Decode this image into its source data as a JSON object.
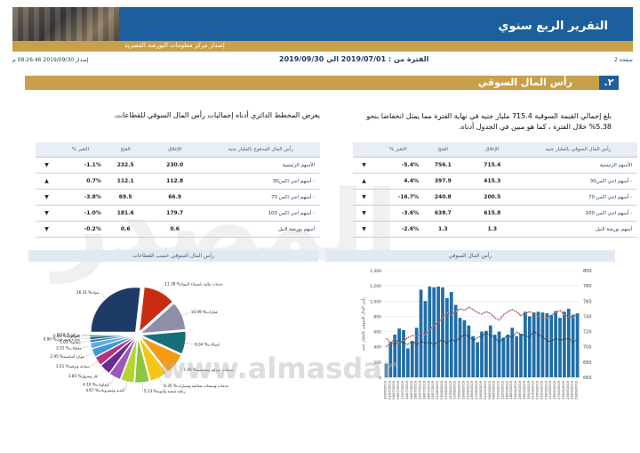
{
  "header": {
    "title": "التقرير الربع سنوي",
    "subtitle": "إصدار مركز معلومات البورصة المصرية"
  },
  "meta": {
    "page": "صفحة 2",
    "period": "الفترة من : 2019/07/01 الي 2019/09/30",
    "issue": "إصدار 2019/09/30 08:26:46 م"
  },
  "section": {
    "number": ".٢",
    "title": "رأس المال السوقي"
  },
  "paragraphs": {
    "right": "بلغ إجمالي القيمة السوقية 715.4 مليار جنيه في نهاية الفترة مما يمثل انخفاضا بنحو 5.38% خلال الفترة ، كما هو مبين في الجدول أدناه.",
    "left": "يعرض المخطط الدائري أدناه إجماليات رأس المال السوقي للقطاعات."
  },
  "table_right": {
    "headers": [
      "رأس المال السوقي بالمليار جنيه",
      "الإغلاق",
      "الفتح",
      "% التغير"
    ],
    "rows": [
      {
        "name": "الأسهم الرئيسية",
        "close": "715.4",
        "open": "756.1",
        "chg": "-5.4%",
        "dir": "down"
      },
      {
        "name": "- أسهم اجي اكس30",
        "close": "415.3",
        "open": "397.9",
        "chg": "4.4%",
        "dir": "up"
      },
      {
        "name": "- أسهم اجي اكس 70",
        "close": "200.5",
        "open": "240.8",
        "chg": "-16.7%",
        "dir": "down"
      },
      {
        "name": "- أسهم اجي اكس 100",
        "close": "615.8",
        "open": "638.7",
        "chg": "-3.6%",
        "dir": "down"
      },
      {
        "name": "أسهم بورصة النيل",
        "close": "1.3",
        "open": "1.3",
        "chg": "-2.6%",
        "dir": "down"
      }
    ]
  },
  "table_left": {
    "headers": [
      "رأس المال المدفوع بالمليار جنيه",
      "الإغلاق",
      "الفتح",
      "% التغير"
    ],
    "rows": [
      {
        "name": "الأسهم الرئيسية",
        "close": "230.0",
        "open": "232.5",
        "chg": "-1.1%",
        "dir": "down"
      },
      {
        "name": "- أسهم اجي اكس30",
        "close": "112.8",
        "open": "112.1",
        "chg": "0.7%",
        "dir": "up"
      },
      {
        "name": "- أسهم اجي اكس 70",
        "close": "66.9",
        "open": "69.5",
        "chg": "-3.8%",
        "dir": "down"
      },
      {
        "name": "- أسهم اجي اكس 100",
        "close": "179.7",
        "open": "181.6",
        "chg": "-1.0%",
        "dir": "down"
      },
      {
        "name": "أسهم بورصة النيل",
        "close": "0.6",
        "open": "0.6",
        "chg": "-0.2%",
        "dir": "down"
      }
    ]
  },
  "watermark": {
    "text": "المصدر",
    "url": "www.almasdar"
  },
  "chart_data": [
    {
      "type": "bar",
      "title": "رأس المال السوقي",
      "ylabel_left": "رأس المال السوقي بالمليار جنيه",
      "ylabel_right": "",
      "ylim_left": [
        0,
        1400
      ],
      "yticks_left": [
        "1,400",
        "1,200",
        "1,000",
        "800",
        "600",
        "400",
        "200",
        "0"
      ],
      "ylim_right": [
        660,
        800
      ],
      "yticks_right": [
        "800",
        "780",
        "760",
        "740",
        "720",
        "700",
        "680",
        "660"
      ],
      "categories": [
        "30/06/2019",
        "02/07/2019",
        "04/07/2019",
        "08/07/2019",
        "10/07/2019",
        "14/07/2019",
        "16/07/2019",
        "18/07/2019",
        "22/07/2019",
        "24/07/2019",
        "28/07/2019",
        "30/07/2019",
        "01/08/2019",
        "05/08/2019",
        "07/08/2019",
        "11/08/2019",
        "13/08/2019",
        "15/08/2019",
        "19/08/2019",
        "21/08/2019",
        "25/08/2019",
        "27/08/2019",
        "29/08/2019",
        "02/09/2019",
        "04/09/2019",
        "08/09/2019",
        "10/09/2019",
        "12/09/2019",
        "16/09/2019",
        "18/09/2019",
        "22/09/2019",
        "24/09/2019",
        "26/09/2019",
        "30/09/2019",
        "01/09/2019",
        "03/09/2019",
        "05/09/2019",
        "09/09/2019",
        "11/09/2019",
        "15/09/2019",
        "17/09/2019",
        "19/09/2019",
        "23/09/2019",
        "25/09/2019",
        "29/09/2019"
      ],
      "series": [
        {
          "name": "",
          "kind": "bar",
          "values": [
            180,
            460,
            560,
            640,
            620,
            380,
            470,
            650,
            1150,
            1000,
            1190,
            1180,
            1190,
            1180,
            1040,
            1120,
            950,
            780,
            750,
            680,
            540,
            460,
            600,
            610,
            680,
            560,
            600,
            520,
            560,
            650,
            540,
            570,
            860,
            800,
            850,
            860,
            850,
            840,
            820,
            870,
            780,
            860,
            900,
            820,
            840
          ]
        },
        {
          "name": "",
          "kind": "line",
          "values": [
            700,
            705,
            710,
            705,
            708,
            712,
            715,
            714,
            718,
            716,
            722,
            728,
            732,
            738,
            745,
            742,
            746,
            750,
            748,
            752,
            749,
            745,
            743,
            746,
            744,
            738,
            735,
            742,
            746,
            749,
            746,
            741,
            744,
            746,
            744,
            740,
            736,
            738,
            741,
            745,
            748,
            742,
            740,
            738,
            744
          ]
        },
        {
          "name": "",
          "kind": "line",
          "values": [
            711,
            706,
            703,
            708,
            705,
            703,
            708,
            703,
            707,
            705,
            706,
            703,
            707,
            709,
            705,
            710,
            707,
            712,
            716,
            714,
            708,
            712,
            714,
            718,
            715,
            712,
            706,
            711,
            715,
            712,
            719,
            717,
            714,
            713,
            720,
            716,
            713,
            708,
            707,
            711,
            709,
            710,
            711,
            706,
            710
          ]
        }
      ]
    },
    {
      "type": "pie",
      "title": "رأس المال السوقي حسب القطاعات",
      "slices": [
        {
          "label": "بنوك",
          "value": 26.31,
          "color": "#1e3a66"
        },
        {
          "label": "خدمات مالية باستثناء البنوك",
          "value": 11.38,
          "color": "#c72c12"
        },
        {
          "label": "عقارات",
          "value": 10.09,
          "color": "#8e8ea8"
        },
        {
          "label": "اتصالات",
          "value": 8.04,
          "color": "#186f7a"
        },
        {
          "label": "منتجات منزلية وشخصية",
          "value": 7.49,
          "color": "#f39c12"
        },
        {
          "label": "خدمات ومنتجات صناعية وسيارات",
          "value": 6.35,
          "color": "#f5c518"
        },
        {
          "label": "رعاية صحية وأدوية",
          "value": 5.13,
          "color": "#8cc63f"
        },
        {
          "label": "أغذية ومشروبات",
          "value": 4.67,
          "color": "#b5d334"
        },
        {
          "label": "كيماويات",
          "value": 4.1,
          "color": "#9b59b6"
        },
        {
          "label": "غاز وبترول",
          "value": 3.85,
          "color": "#6a2c91"
        },
        {
          "label": "سياحة وترفيه",
          "value": 3.21,
          "color": "#b83280"
        },
        {
          "label": "موارد أساسية",
          "value": 2.95,
          "color": "#3c9bd6"
        },
        {
          "label": "مقاولات وإنشاءات هندسية",
          "value": 2.01,
          "color": "#5dade2"
        },
        {
          "label": "إعلام",
          "value": 1.03,
          "color": "#2e86c1"
        },
        {
          "label": "تجارة وموزعون",
          "value": 0.9,
          "color": "#1b4f72"
        },
        {
          "label": "تكنولوجيا",
          "value": 0.6,
          "color": "#117a65"
        },
        {
          "label": "مرافق",
          "value": 0.12,
          "color": "#a04000"
        }
      ],
      "slice_labels": [
        "26.31 %بنوك",
        "11.38 %خدمات مالية باستثناء البنوك",
        "10.09 %عقارات",
        "8.04 %اتصالات",
        "7.49 %منتجات منزلية وشخصية",
        "6.35 %خدمات ومنتجات صناعية وسيارات",
        "5.13 %رعاية صحية وأدوية",
        "4.67 %أغذية ومشروبات",
        "4.10 %كيماويات",
        "3.85 %غاز وبترول",
        "3.21 %سياحة وترفيه",
        "2.95 %موارد أساسية",
        "2.01 %مقاولات",
        "1.03 %إعلام",
        "0.90 %تجارة وموزعون",
        "0.60 %تكنولوجيا",
        "0.12 %مرافق"
      ]
    }
  ]
}
